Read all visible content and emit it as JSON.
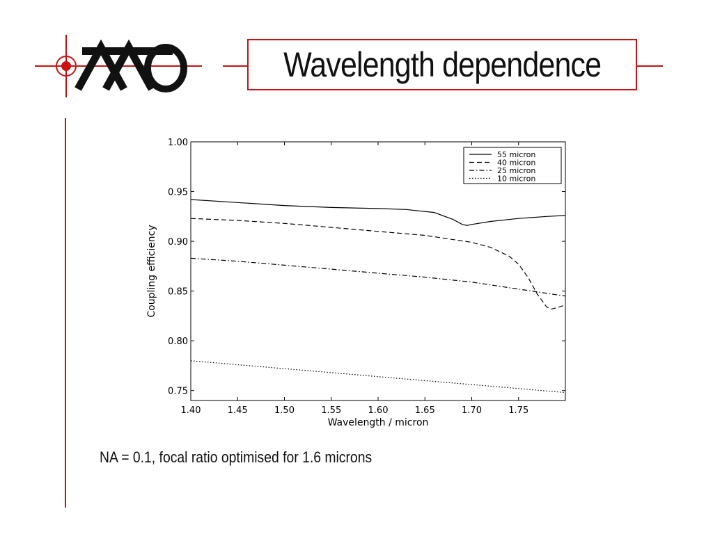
{
  "slide": {
    "title": "Wavelength dependence",
    "caption": "NA = 0.1, focal ratio optimised for 1.6 microns",
    "accent_color": "#cc1111",
    "logo_icon": "aao-crosshair-logo"
  },
  "chart_data": {
    "type": "line",
    "title": "",
    "xlabel": "Wavelength / micron",
    "ylabel": "Coupling efficiency",
    "xlim": [
      1.4,
      1.8
    ],
    "ylim": [
      0.74,
      1.0
    ],
    "xticks": [
      "1.40",
      "1.45",
      "1.50",
      "1.55",
      "1.60",
      "1.65",
      "1.70",
      "1.75"
    ],
    "yticks": [
      "0.75",
      "0.80",
      "0.85",
      "0.90",
      "0.95",
      "1.00"
    ],
    "grid": false,
    "legend_position": "top-right",
    "series": [
      {
        "name": "55 micron",
        "style": "solid",
        "x": [
          1.4,
          1.45,
          1.5,
          1.55,
          1.6,
          1.63,
          1.66,
          1.68,
          1.69,
          1.695,
          1.7,
          1.72,
          1.75,
          1.78,
          1.8
        ],
        "y": [
          0.942,
          0.939,
          0.936,
          0.934,
          0.933,
          0.932,
          0.929,
          0.922,
          0.917,
          0.916,
          0.917,
          0.92,
          0.923,
          0.925,
          0.926
        ]
      },
      {
        "name": "40 micron",
        "style": "dashed",
        "x": [
          1.4,
          1.45,
          1.5,
          1.55,
          1.6,
          1.65,
          1.7,
          1.72,
          1.74,
          1.75,
          1.76,
          1.77,
          1.78,
          1.785,
          1.79,
          1.8
        ],
        "y": [
          0.923,
          0.921,
          0.918,
          0.914,
          0.91,
          0.906,
          0.899,
          0.894,
          0.885,
          0.877,
          0.864,
          0.847,
          0.834,
          0.832,
          0.833,
          0.836
        ]
      },
      {
        "name": "25 micron",
        "style": "dashdot",
        "x": [
          1.4,
          1.45,
          1.5,
          1.55,
          1.6,
          1.65,
          1.7,
          1.75,
          1.8
        ],
        "y": [
          0.883,
          0.88,
          0.876,
          0.872,
          0.868,
          0.864,
          0.859,
          0.852,
          0.845
        ]
      },
      {
        "name": "10 micron",
        "style": "dotted",
        "x": [
          1.4,
          1.45,
          1.5,
          1.55,
          1.6,
          1.65,
          1.7,
          1.75,
          1.8
        ],
        "y": [
          0.78,
          0.776,
          0.772,
          0.768,
          0.764,
          0.76,
          0.756,
          0.752,
          0.748
        ]
      }
    ]
  }
}
